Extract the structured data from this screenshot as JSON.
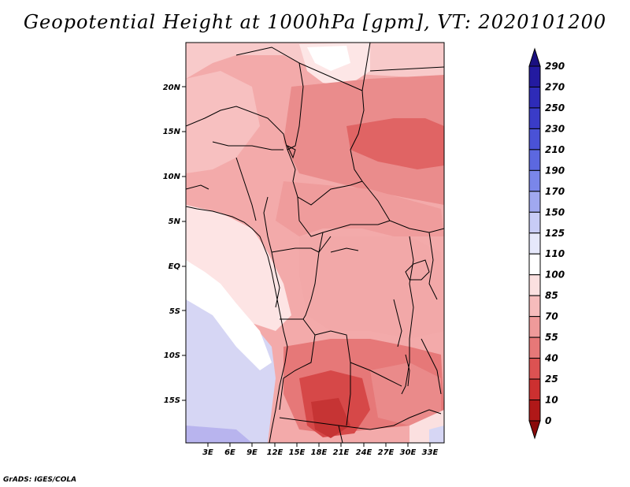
{
  "title": "Geopotential Height at 1000hPa [gpm], VT: 2020101200",
  "credit": "GrADS: IGES/COLA",
  "map": {
    "lat_labels": [
      "20N",
      "15N",
      "10N",
      "5N",
      "EQ",
      "5S",
      "10S",
      "15S"
    ],
    "lon_labels": [
      "3E",
      "6E",
      "9E",
      "12E",
      "15E",
      "18E",
      "21E",
      "24E",
      "27E",
      "30E",
      "33E"
    ]
  },
  "colorbar": {
    "levels": [
      "290",
      "270",
      "250",
      "230",
      "210",
      "190",
      "170",
      "150",
      "125",
      "110",
      "100",
      "85",
      "70",
      "55",
      "40",
      "25",
      "10",
      "0"
    ],
    "colors": [
      "#1a1080",
      "#231aa0",
      "#2e2bb8",
      "#3a3cc8",
      "#4a52d6",
      "#5c68e0",
      "#7a86ea",
      "#a0a8f0",
      "#c8ccf6",
      "#e6e8fb",
      "#ffffff",
      "#fbe0e0",
      "#f6bcbc",
      "#ef9a9a",
      "#e77878",
      "#dc5252",
      "#cc3030",
      "#b01818",
      "#8a0a0a"
    ]
  }
}
